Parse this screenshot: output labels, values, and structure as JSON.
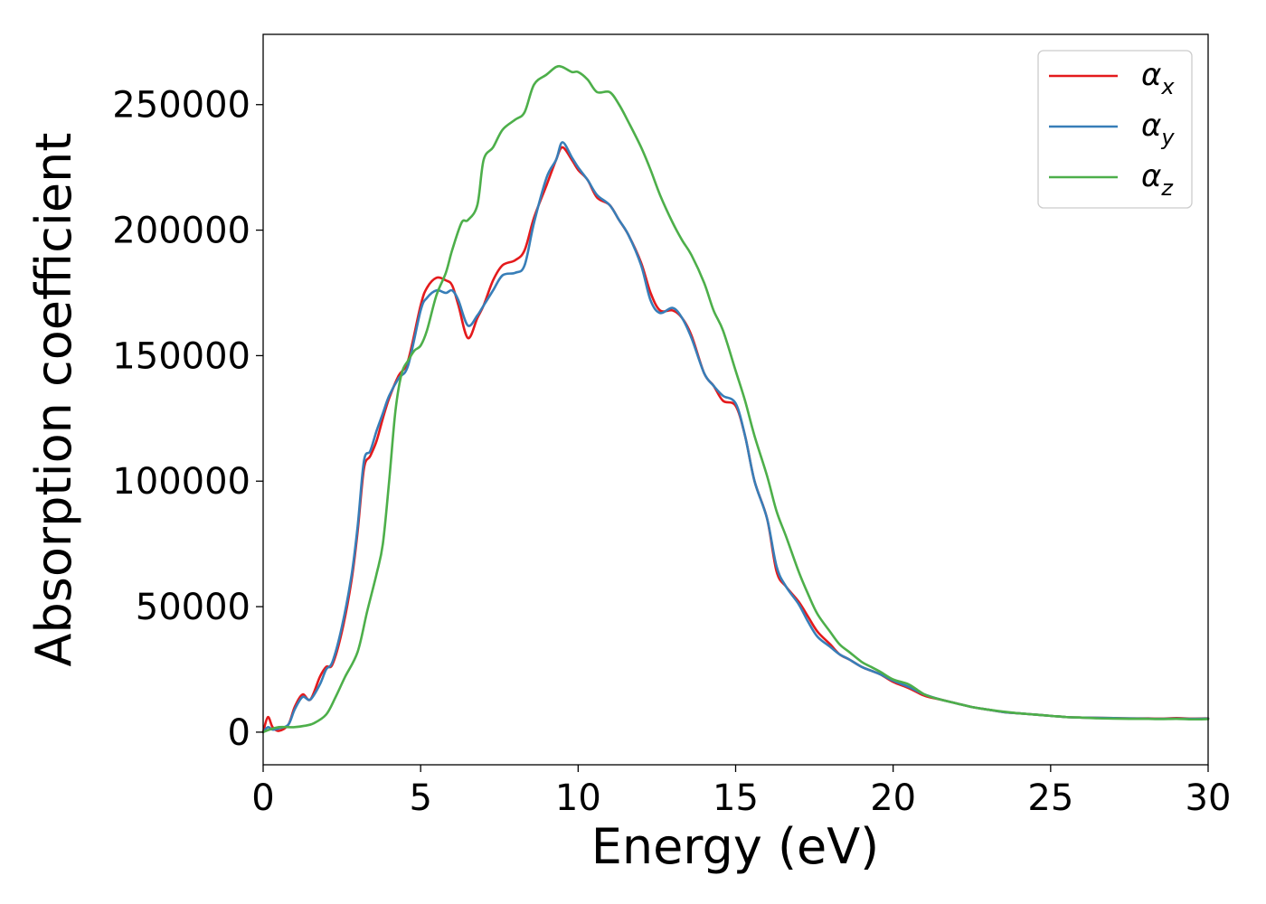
{
  "chart_data": {
    "type": "line",
    "title": "",
    "xlabel": "Energy (eV)",
    "ylabel": "Absorption coefficient",
    "xlim": [
      0,
      30
    ],
    "ylim": [
      -13000,
      278000
    ],
    "xticks": [
      0,
      5,
      10,
      15,
      20,
      25,
      30
    ],
    "yticks": [
      0,
      50000,
      100000,
      150000,
      200000,
      250000
    ],
    "xtick_labels": [
      "0",
      "5",
      "10",
      "15",
      "20",
      "25",
      "30"
    ],
    "ytick_labels": [
      "0",
      "50000",
      "100000",
      "150000",
      "200000",
      "250000"
    ],
    "grid": false,
    "legend_position": "top-right",
    "series": [
      {
        "name": "αx",
        "symbol": "α",
        "subscript": "x",
        "color": "#e41a1c",
        "x": [
          0,
          0.15,
          0.3,
          0.5,
          0.8,
          1.0,
          1.25,
          1.5,
          1.8,
          2.0,
          2.2,
          2.5,
          2.8,
          3.0,
          3.2,
          3.4,
          3.6,
          3.8,
          4.0,
          4.3,
          4.6,
          5.0,
          5.2,
          5.5,
          5.8,
          6.0,
          6.2,
          6.5,
          6.8,
          7.0,
          7.3,
          7.6,
          8.0,
          8.3,
          8.6,
          9.0,
          9.3,
          9.5,
          9.8,
          10.0,
          10.3,
          10.6,
          11.0,
          11.3,
          11.6,
          12.0,
          12.3,
          12.6,
          13.0,
          13.3,
          13.6,
          14.0,
          14.3,
          14.6,
          15.0,
          15.3,
          15.6,
          16.0,
          16.3,
          16.6,
          17.0,
          17.3,
          17.6,
          18.0,
          18.3,
          18.6,
          19.0,
          19.3,
          19.6,
          20.0,
          20.5,
          21.0,
          21.5,
          22.0,
          22.5,
          23.0,
          23.5,
          24.0,
          24.5,
          25.0,
          25.5,
          26.0,
          26.5,
          27.0,
          27.5,
          28.0,
          28.5,
          29.0,
          29.5,
          30.0
        ],
        "y": [
          0,
          6000,
          2000,
          500,
          3000,
          10000,
          15000,
          13000,
          22000,
          26000,
          27000,
          40000,
          60000,
          80000,
          105000,
          110000,
          116000,
          125000,
          133000,
          142000,
          148000,
          170000,
          177000,
          181000,
          180000,
          178000,
          170000,
          157000,
          165000,
          170000,
          180000,
          186000,
          188000,
          192000,
          205000,
          218000,
          228000,
          233000,
          228000,
          224000,
          220000,
          213000,
          210000,
          204000,
          198000,
          187000,
          175000,
          168000,
          168000,
          165000,
          158000,
          143000,
          138000,
          132000,
          130000,
          118000,
          100000,
          85000,
          64000,
          58000,
          52000,
          46000,
          40000,
          35000,
          31000,
          29000,
          26000,
          24500,
          23000,
          20000,
          17500,
          14500,
          13000,
          11500,
          10000,
          9000,
          8000,
          7500,
          7000,
          6500,
          6000,
          5800,
          5700,
          5600,
          5500,
          5500,
          5400,
          5600,
          5400,
          5500
        ]
      },
      {
        "name": "αy",
        "symbol": "α",
        "subscript": "y",
        "color": "#377eb8",
        "x": [
          0,
          0.15,
          0.3,
          0.5,
          0.8,
          1.0,
          1.25,
          1.5,
          1.8,
          2.0,
          2.2,
          2.5,
          2.8,
          3.0,
          3.2,
          3.4,
          3.6,
          3.8,
          4.0,
          4.3,
          4.6,
          5.0,
          5.2,
          5.5,
          5.8,
          6.0,
          6.2,
          6.5,
          6.8,
          7.0,
          7.3,
          7.6,
          8.0,
          8.3,
          8.6,
          9.0,
          9.3,
          9.5,
          9.8,
          10.0,
          10.3,
          10.6,
          11.0,
          11.3,
          11.6,
          12.0,
          12.3,
          12.6,
          13.0,
          13.3,
          13.6,
          14.0,
          14.3,
          14.6,
          15.0,
          15.3,
          15.6,
          16.0,
          16.3,
          16.6,
          17.0,
          17.3,
          17.6,
          18.0,
          18.3,
          18.6,
          19.0,
          19.3,
          19.6,
          20.0,
          20.5,
          21.0,
          21.5,
          22.0,
          22.5,
          23.0,
          23.5,
          24.0,
          24.5,
          25.0,
          25.5,
          26.0,
          26.5,
          27.0,
          27.5,
          28.0,
          28.5,
          29.0,
          29.5,
          30.0
        ],
        "y": [
          0,
          2000,
          1000,
          1500,
          3000,
          9000,
          14000,
          13000,
          19000,
          25000,
          28000,
          42000,
          62000,
          82000,
          108000,
          112000,
          120000,
          127000,
          134000,
          141000,
          146000,
          168000,
          173000,
          176000,
          175000,
          176000,
          172000,
          162000,
          166000,
          170000,
          176000,
          182000,
          183000,
          186000,
          203000,
          221000,
          228000,
          235000,
          229000,
          225000,
          220000,
          214000,
          210000,
          204000,
          198000,
          186000,
          172000,
          167000,
          169000,
          165000,
          157000,
          143000,
          138000,
          134000,
          131000,
          118000,
          100000,
          85000,
          66000,
          58000,
          51000,
          44000,
          38000,
          34000,
          31000,
          29000,
          26000,
          24500,
          23000,
          20500,
          18000,
          15000,
          13000,
          11500,
          10000,
          9000,
          8000,
          7500,
          7000,
          6500,
          6000,
          5800,
          5700,
          5600,
          5500,
          5400,
          5300,
          5400,
          5300,
          5400
        ]
      },
      {
        "name": "αz",
        "symbol": "α",
        "subscript": "z",
        "color": "#4daf4a",
        "x": [
          0,
          0.2,
          0.5,
          0.8,
          1.0,
          1.3,
          1.6,
          2.0,
          2.3,
          2.6,
          3.0,
          3.3,
          3.6,
          3.8,
          4.0,
          4.2,
          4.4,
          4.6,
          4.8,
          5.0,
          5.2,
          5.5,
          5.8,
          6.0,
          6.3,
          6.5,
          6.8,
          7.0,
          7.3,
          7.6,
          8.0,
          8.3,
          8.6,
          9.0,
          9.3,
          9.5,
          9.8,
          10.0,
          10.3,
          10.6,
          11.0,
          11.3,
          11.6,
          12.0,
          12.3,
          12.6,
          13.0,
          13.3,
          13.6,
          14.0,
          14.3,
          14.6,
          15.0,
          15.3,
          15.6,
          16.0,
          16.3,
          16.6,
          17.0,
          17.3,
          17.6,
          18.0,
          18.3,
          18.6,
          19.0,
          19.3,
          19.6,
          20.0,
          20.5,
          21.0,
          21.5,
          22.0,
          22.5,
          23.0,
          23.5,
          24.0,
          24.5,
          25.0,
          25.5,
          26.0,
          26.5,
          27.0,
          27.5,
          28.0,
          28.5,
          29.0,
          29.5,
          30.0
        ],
        "y": [
          0,
          1000,
          2000,
          2000,
          2000,
          2500,
          3500,
          7000,
          14000,
          22000,
          32000,
          48000,
          63000,
          75000,
          100000,
          128000,
          143000,
          148000,
          152000,
          154000,
          160000,
          174000,
          183000,
          192000,
          203000,
          204000,
          210000,
          228000,
          233000,
          240000,
          244000,
          247000,
          258000,
          262000,
          265000,
          265000,
          263000,
          263000,
          260000,
          255000,
          255000,
          250000,
          243000,
          233000,
          224000,
          214000,
          203000,
          196000,
          190000,
          179000,
          168000,
          160000,
          144000,
          132000,
          118000,
          102000,
          88000,
          78000,
          64000,
          55000,
          47000,
          40000,
          35000,
          32000,
          28000,
          26000,
          24000,
          21000,
          19000,
          15000,
          13000,
          11500,
          10000,
          9000,
          8200,
          7500,
          7000,
          6500,
          6000,
          5800,
          5500,
          5400,
          5300,
          5300,
          5200,
          5300,
          5100,
          5200
        ]
      }
    ]
  }
}
